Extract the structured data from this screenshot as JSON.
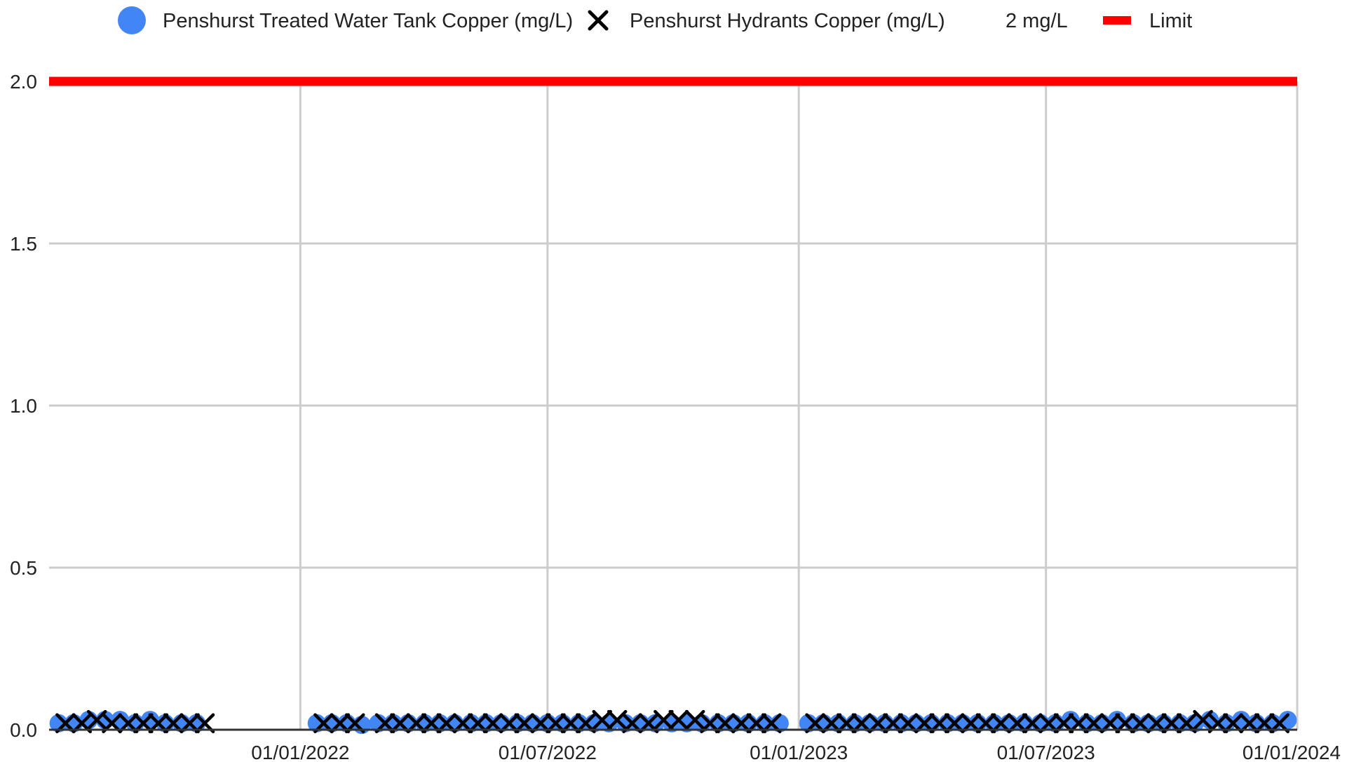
{
  "chart_data": {
    "type": "scatter",
    "title": "",
    "xlabel": "",
    "ylabel": "",
    "xlim": [
      "2021-07-01",
      "2024-01-01"
    ],
    "ylim": [
      0,
      2
    ],
    "y_ticks": [
      0,
      0.5,
      1,
      1.5,
      2
    ],
    "y_tick_labels": [
      "0.0",
      "0.5",
      "1.0",
      "1.5",
      "2.0"
    ],
    "x_ticks": [
      "2022-01-01",
      "2022-07-01",
      "2023-01-01",
      "2023-07-01",
      "2024-01-01"
    ],
    "x_tick_labels": [
      "01/01/2022",
      "01/07/2022",
      "01/01/2023",
      "01/07/2023",
      "01/01/2024"
    ],
    "grid": true,
    "legend_position": "top",
    "legend": [
      {
        "label": "Penshurst Treated Water Tank Copper (mg/L)",
        "marker": "circle",
        "color": "#4285f4"
      },
      {
        "label": "Penshurst Hydrants Copper (mg/L)",
        "marker": "x",
        "color": "#000000"
      },
      {
        "label": "2 mg/L",
        "marker": "none",
        "color": "#ffffff"
      },
      {
        "label": "Limit",
        "marker": "line",
        "color": "#ff0000"
      }
    ],
    "series": [
      {
        "name": "Penshurst Treated Water Tank Copper (mg/L)",
        "marker": "circle",
        "color": "#4285f4",
        "points": [
          [
            "2021-07-08",
            0.02
          ],
          [
            "2021-07-19",
            0.02
          ],
          [
            "2021-07-30",
            0.03
          ],
          [
            "2021-08-11",
            0.03
          ],
          [
            "2021-08-22",
            0.03
          ],
          [
            "2021-09-02",
            0.02
          ],
          [
            "2021-09-13",
            0.03
          ],
          [
            "2021-09-24",
            0.02
          ],
          [
            "2021-10-06",
            0.02
          ],
          [
            "2021-10-17",
            0.02
          ],
          [
            "2022-01-13",
            0.02
          ],
          [
            "2022-01-24",
            0.02
          ],
          [
            "2022-02-04",
            0.02
          ],
          [
            "2022-02-15",
            0.015
          ],
          [
            "2022-02-27",
            0.02
          ],
          [
            "2022-03-10",
            0.02
          ],
          [
            "2022-03-21",
            0.02
          ],
          [
            "2022-04-02",
            0.02
          ],
          [
            "2022-04-13",
            0.02
          ],
          [
            "2022-04-24",
            0.02
          ],
          [
            "2022-05-06",
            0.02
          ],
          [
            "2022-05-17",
            0.02
          ],
          [
            "2022-05-28",
            0.02
          ],
          [
            "2022-06-09",
            0.02
          ],
          [
            "2022-06-20",
            0.02
          ],
          [
            "2022-07-01",
            0.02
          ],
          [
            "2022-07-12",
            0.02
          ],
          [
            "2022-07-24",
            0.02
          ],
          [
            "2022-08-04",
            0.02
          ],
          [
            "2022-08-15",
            0.02
          ],
          [
            "2022-08-27",
            0.02
          ],
          [
            "2022-09-07",
            0.02
          ],
          [
            "2022-09-18",
            0.02
          ],
          [
            "2022-09-30",
            0.02
          ],
          [
            "2022-10-11",
            0.02
          ],
          [
            "2022-10-22",
            0.02
          ],
          [
            "2022-11-03",
            0.02
          ],
          [
            "2022-11-14",
            0.02
          ],
          [
            "2022-11-25",
            0.02
          ],
          [
            "2022-12-07",
            0.02
          ],
          [
            "2022-12-18",
            0.02
          ],
          [
            "2023-01-08",
            0.02
          ],
          [
            "2023-01-19",
            0.02
          ],
          [
            "2023-01-30",
            0.02
          ],
          [
            "2023-02-11",
            0.02
          ],
          [
            "2023-02-22",
            0.02
          ],
          [
            "2023-03-05",
            0.02
          ],
          [
            "2023-03-17",
            0.02
          ],
          [
            "2023-03-28",
            0.02
          ],
          [
            "2023-04-08",
            0.02
          ],
          [
            "2023-04-20",
            0.02
          ],
          [
            "2023-05-01",
            0.02
          ],
          [
            "2023-05-12",
            0.02
          ],
          [
            "2023-05-24",
            0.02
          ],
          [
            "2023-06-04",
            0.02
          ],
          [
            "2023-06-15",
            0.02
          ],
          [
            "2023-06-27",
            0.02
          ],
          [
            "2023-07-08",
            0.02
          ],
          [
            "2023-07-19",
            0.03
          ],
          [
            "2023-07-31",
            0.02
          ],
          [
            "2023-08-11",
            0.02
          ],
          [
            "2023-08-22",
            0.03
          ],
          [
            "2023-09-03",
            0.02
          ],
          [
            "2023-09-14",
            0.02
          ],
          [
            "2023-09-25",
            0.02
          ],
          [
            "2023-10-07",
            0.02
          ],
          [
            "2023-10-18",
            0.02
          ],
          [
            "2023-10-29",
            0.03
          ],
          [
            "2023-11-10",
            0.02
          ],
          [
            "2023-11-21",
            0.03
          ],
          [
            "2023-12-02",
            0.02
          ],
          [
            "2023-12-14",
            0.02
          ],
          [
            "2023-12-25",
            0.03
          ]
        ]
      },
      {
        "name": "Penshurst Hydrants Copper (mg/L)",
        "marker": "x",
        "color": "#000000",
        "points": [
          [
            "2021-07-13",
            0.02
          ],
          [
            "2021-07-25",
            0.02
          ],
          [
            "2021-08-05",
            0.03
          ],
          [
            "2021-08-16",
            0.02
          ],
          [
            "2021-08-28",
            0.02
          ],
          [
            "2021-09-08",
            0.02
          ],
          [
            "2021-09-19",
            0.02
          ],
          [
            "2021-09-30",
            0.02
          ],
          [
            "2021-10-12",
            0.02
          ],
          [
            "2021-10-23",
            0.02
          ],
          [
            "2022-01-18",
            0.02
          ],
          [
            "2022-01-30",
            0.02
          ],
          [
            "2022-02-10",
            0.02
          ],
          [
            "2022-03-04",
            0.02
          ],
          [
            "2022-03-15",
            0.02
          ],
          [
            "2022-03-27",
            0.02
          ],
          [
            "2022-04-07",
            0.02
          ],
          [
            "2022-04-18",
            0.02
          ],
          [
            "2022-04-30",
            0.02
          ],
          [
            "2022-05-11",
            0.02
          ],
          [
            "2022-05-22",
            0.02
          ],
          [
            "2022-06-03",
            0.02
          ],
          [
            "2022-06-14",
            0.02
          ],
          [
            "2022-06-26",
            0.02
          ],
          [
            "2022-07-07",
            0.02
          ],
          [
            "2022-07-18",
            0.02
          ],
          [
            "2022-07-29",
            0.02
          ],
          [
            "2022-08-10",
            0.03
          ],
          [
            "2022-08-21",
            0.03
          ],
          [
            "2022-09-01",
            0.02
          ],
          [
            "2022-09-13",
            0.02
          ],
          [
            "2022-09-24",
            0.03
          ],
          [
            "2022-10-05",
            0.03
          ],
          [
            "2022-10-17",
            0.03
          ],
          [
            "2022-10-28",
            0.02
          ],
          [
            "2022-11-08",
            0.02
          ],
          [
            "2022-11-20",
            0.02
          ],
          [
            "2022-12-01",
            0.02
          ],
          [
            "2022-12-12",
            0.02
          ],
          [
            "2023-01-13",
            0.02
          ],
          [
            "2023-01-25",
            0.02
          ],
          [
            "2023-02-05",
            0.02
          ],
          [
            "2023-02-16",
            0.02
          ],
          [
            "2023-02-28",
            0.02
          ],
          [
            "2023-03-11",
            0.02
          ],
          [
            "2023-03-22",
            0.02
          ],
          [
            "2023-04-03",
            0.02
          ],
          [
            "2023-04-14",
            0.02
          ],
          [
            "2023-04-25",
            0.02
          ],
          [
            "2023-05-07",
            0.02
          ],
          [
            "2023-05-18",
            0.02
          ],
          [
            "2023-05-29",
            0.02
          ],
          [
            "2023-06-10",
            0.02
          ],
          [
            "2023-06-21",
            0.02
          ],
          [
            "2023-07-03",
            0.02
          ],
          [
            "2023-07-14",
            0.02
          ],
          [
            "2023-07-25",
            0.02
          ],
          [
            "2023-08-05",
            0.02
          ],
          [
            "2023-08-17",
            0.02
          ],
          [
            "2023-08-28",
            0.02
          ],
          [
            "2023-09-08",
            0.02
          ],
          [
            "2023-09-20",
            0.02
          ],
          [
            "2023-10-01",
            0.02
          ],
          [
            "2023-10-12",
            0.02
          ],
          [
            "2023-10-24",
            0.03
          ],
          [
            "2023-11-04",
            0.02
          ],
          [
            "2023-11-15",
            0.02
          ],
          [
            "2023-11-27",
            0.02
          ],
          [
            "2023-12-08",
            0.02
          ],
          [
            "2023-12-19",
            0.02
          ]
        ]
      },
      {
        "name": "Limit",
        "marker": "line",
        "color": "#ff0000",
        "points": [
          [
            "2021-07-01",
            2
          ],
          [
            "2024-01-01",
            2
          ]
        ]
      }
    ]
  }
}
